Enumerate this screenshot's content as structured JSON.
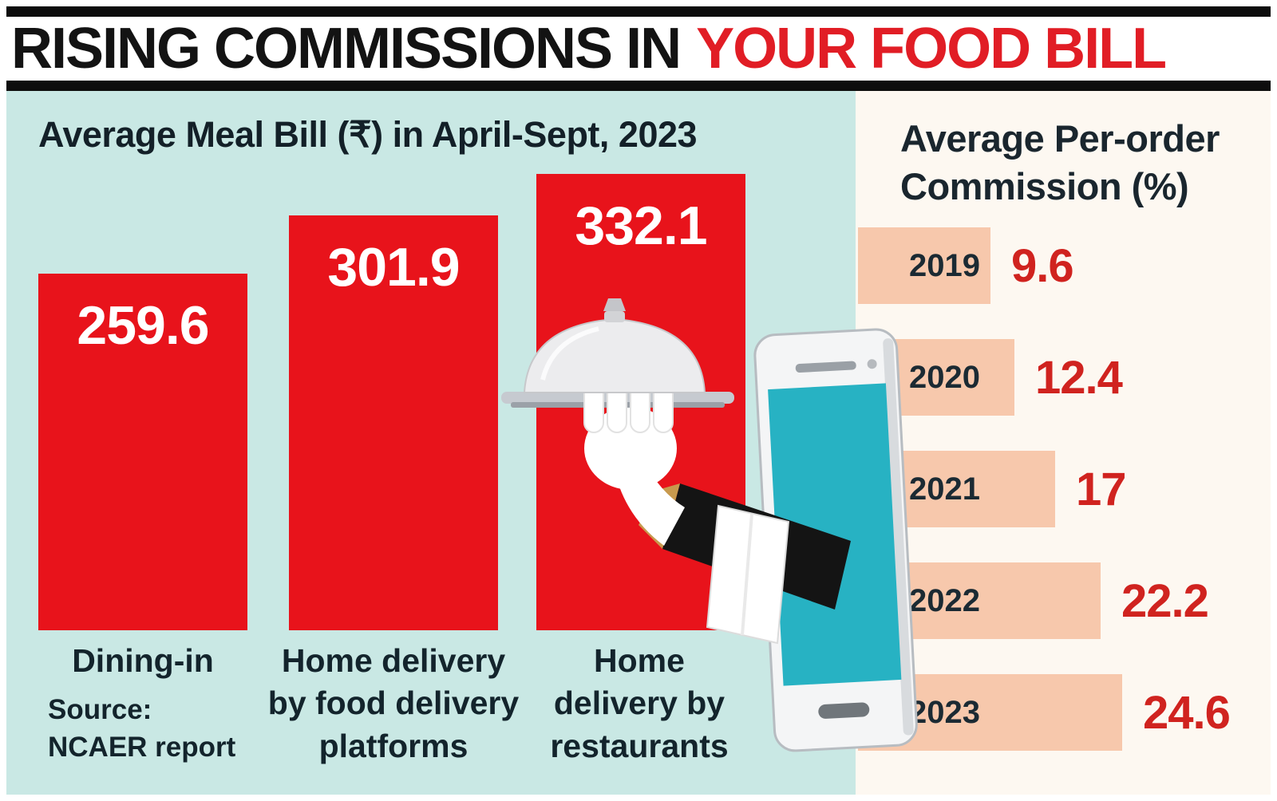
{
  "header": {
    "title_black": "RISING COMMISSIONS IN",
    "title_red": "YOUR FOOD BILL"
  },
  "left_chart": {
    "source": "Source:\nNCAER report"
  },
  "chart_data": [
    {
      "type": "bar",
      "title": "Average Meal Bill (₹) in April-Sept, 2023",
      "categories": [
        "Dining-in",
        "Home delivery by food delivery platforms",
        "Home delivery by restaurants"
      ],
      "category_display": [
        "Dining-in",
        "Home delivery\nby food delivery\nplatforms",
        "Home\ndelivery by\nrestaurants"
      ],
      "values": [
        259.6,
        301.9,
        332.1
      ],
      "value_labels": [
        "259.6",
        "301.9",
        "332.1"
      ],
      "ylabel": "Average meal bill (₹)",
      "ylim": [
        0,
        332.1
      ],
      "bar_color": "#e8131b",
      "value_label_color": "#ffffff",
      "source": "NCAER report",
      "legend": "none",
      "grid": false
    },
    {
      "type": "bar",
      "orientation": "horizontal",
      "title": "Average Per-order Commission (%)",
      "title_display": "Average Per-order\nCommission (%)",
      "categories": [
        "2019",
        "2020",
        "2021",
        "2022",
        "2023"
      ],
      "values": [
        9.6,
        12.4,
        17,
        22.2,
        24.6
      ],
      "value_labels": [
        "9.6",
        "12.4",
        "17",
        "22.2",
        "24.6"
      ],
      "xlim": [
        0,
        24.6
      ],
      "bar_color": "#f7c8ac",
      "value_color": "#d0231f",
      "legend": "none",
      "grid": false
    }
  ],
  "illustration": {
    "name": "hand-with-cloche-from-smartphone"
  },
  "colors": {
    "headline_black": "#131313",
    "headline_red": "#e11d25",
    "left_panel_bg": "#c9e8e4",
    "right_panel_bg": "#fdf8f1",
    "meal_bar_red": "#e8131b",
    "commission_bar_peach": "#f7c8ac",
    "value_red": "#d0231f",
    "text_dark": "#13242c",
    "phone_screen_teal": "#27b2c3"
  }
}
